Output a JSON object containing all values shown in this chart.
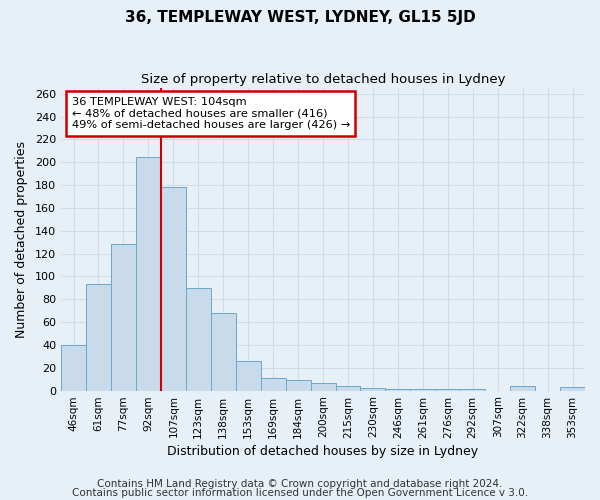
{
  "title": "36, TEMPLEWAY WEST, LYDNEY, GL15 5JD",
  "subtitle": "Size of property relative to detached houses in Lydney",
  "xlabel": "Distribution of detached houses by size in Lydney",
  "ylabel": "Number of detached properties",
  "bar_labels": [
    "46sqm",
    "61sqm",
    "77sqm",
    "92sqm",
    "107sqm",
    "123sqm",
    "138sqm",
    "153sqm",
    "169sqm",
    "184sqm",
    "200sqm",
    "215sqm",
    "230sqm",
    "246sqm",
    "261sqm",
    "276sqm",
    "292sqm",
    "307sqm",
    "322sqm",
    "338sqm",
    "353sqm"
  ],
  "bar_values": [
    40,
    93,
    128,
    205,
    178,
    90,
    68,
    26,
    11,
    9,
    7,
    4,
    2,
    1,
    1,
    1,
    1,
    0,
    4,
    0,
    3
  ],
  "bar_color": "#c9daea",
  "bar_edge_color": "#6aa8cb",
  "vline_color": "#cc0000",
  "annotation_text": "36 TEMPLEWAY WEST: 104sqm\n← 48% of detached houses are smaller (416)\n49% of semi-detached houses are larger (426) →",
  "annotation_box_color": "white",
  "annotation_box_edge_color": "#cc0000",
  "ylim": [
    0,
    265
  ],
  "yticks": [
    0,
    20,
    40,
    60,
    80,
    100,
    120,
    140,
    160,
    180,
    200,
    220,
    240,
    260
  ],
  "footnote1": "Contains HM Land Registry data © Crown copyright and database right 2024.",
  "footnote2": "Contains public sector information licensed under the Open Government Licence v 3.0.",
  "background_color": "#e8f0f7",
  "grid_color": "#d0dce8",
  "title_fontsize": 11,
  "subtitle_fontsize": 9.5,
  "footnote_fontsize": 7.5
}
